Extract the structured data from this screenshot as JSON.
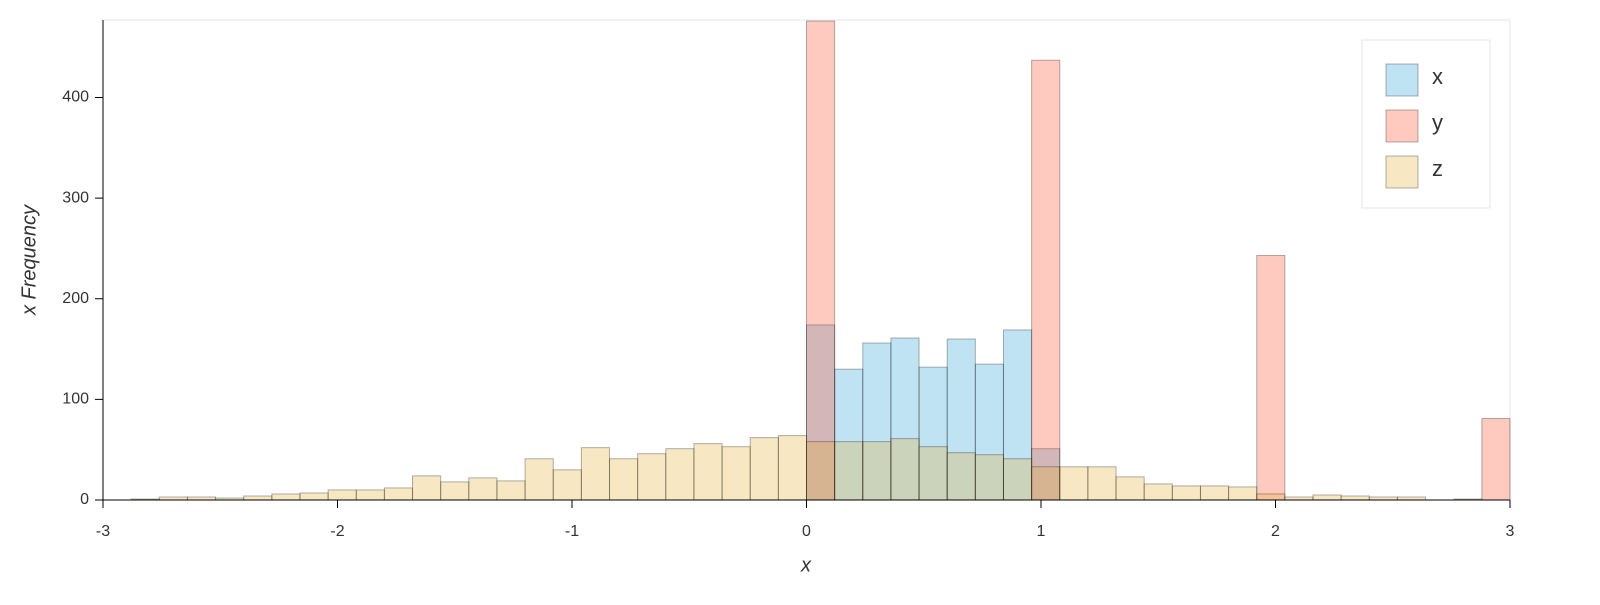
{
  "chart_data": {
    "type": "histogram",
    "xlabel": "x",
    "ylabel": "x Frequency",
    "bins": [
      -3,
      -2.88,
      -2.76,
      -2.64,
      -2.52,
      -2.4,
      -2.28,
      -2.16,
      -2.04,
      -1.92,
      -1.8,
      -1.68,
      -1.56,
      -1.44,
      -1.32,
      -1.2,
      -1.08,
      -0.96,
      -0.84,
      -0.72,
      -0.6,
      -0.48,
      -0.36,
      -0.24,
      -0.12,
      0,
      0.12,
      0.24,
      0.36,
      0.48,
      0.6,
      0.72,
      0.84,
      0.96,
      1.08,
      1.2,
      1.32,
      1.44,
      1.56,
      1.68,
      1.8,
      1.92,
      2.04,
      2.16,
      2.28,
      2.4,
      2.52,
      2.64,
      2.76,
      2.88,
      3
    ],
    "series": [
      {
        "name": "x",
        "color": "#30a2da",
        "values": [
          0,
          0,
          0,
          0,
          0,
          0,
          0,
          0,
          0,
          0,
          0,
          0,
          0,
          0,
          0,
          0,
          0,
          0,
          0,
          0,
          0,
          0,
          0,
          0,
          0,
          174,
          130,
          156,
          161,
          132,
          160,
          135,
          169,
          51,
          0,
          0,
          0,
          0,
          0,
          0,
          0,
          0,
          0,
          0,
          0,
          0,
          0,
          0,
          0,
          0
        ]
      },
      {
        "name": "y",
        "color": "#fc4f30",
        "values": [
          0,
          0,
          0,
          0,
          0,
          0,
          0,
          0,
          0,
          0,
          0,
          0,
          0,
          0,
          0,
          0,
          0,
          0,
          0,
          0,
          0,
          0,
          0,
          0,
          0,
          476,
          0,
          0,
          0,
          0,
          0,
          0,
          0,
          437,
          0,
          0,
          0,
          0,
          0,
          0,
          0,
          243,
          0,
          0,
          0,
          0,
          0,
          0,
          0,
          81
        ]
      },
      {
        "name": "z",
        "color": "#e5ae38",
        "values": [
          0,
          1,
          3,
          3,
          2,
          4,
          6,
          7,
          10,
          10,
          12,
          24,
          18,
          22,
          19,
          41,
          30,
          52,
          41,
          46,
          51,
          56,
          53,
          62,
          64,
          58,
          58,
          58,
          61,
          53,
          47,
          45,
          41,
          33,
          33,
          33,
          23,
          16,
          14,
          14,
          13,
          6,
          3,
          5,
          4,
          3,
          3,
          0,
          1,
          0
        ]
      }
    ],
    "xlim": [
      -3,
      3
    ],
    "xticks": [
      -3,
      -2,
      -1,
      0,
      1,
      2,
      3
    ],
    "ylim": [
      0,
      477
    ],
    "yticks": [
      0,
      100,
      200,
      300,
      400
    ],
    "legend": "top-right"
  }
}
